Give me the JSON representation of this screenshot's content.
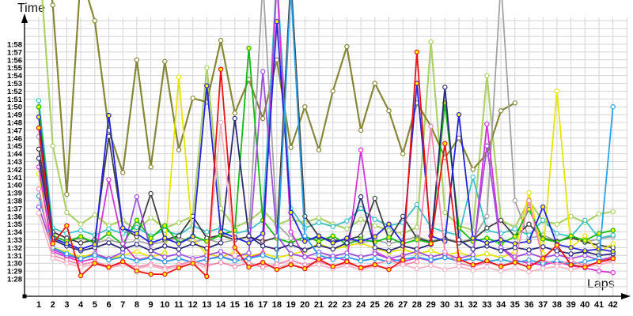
{
  "chart_data": {
    "type": "line",
    "title": "",
    "xlabel": "Laps",
    "ylabel": "Time",
    "x_ticks": [
      1,
      2,
      3,
      4,
      5,
      6,
      7,
      8,
      9,
      10,
      11,
      12,
      13,
      14,
      15,
      16,
      17,
      18,
      19,
      20,
      21,
      22,
      23,
      24,
      25,
      26,
      27,
      28,
      29,
      30,
      31,
      32,
      33,
      34,
      35,
      36,
      37,
      38,
      39,
      40,
      41,
      42
    ],
    "y_tick_labels": [
      "1:28",
      "1:29",
      "1:30",
      "1:31",
      "1:32",
      "1:33",
      "1:34",
      "1:35",
      "1:36",
      "1:37",
      "1:38",
      "1:39",
      "1:40",
      "1:41",
      "1:42",
      "1:43",
      "1:44",
      "1:45",
      "1:46",
      "1:47",
      "1:48",
      "1:49",
      "1:50",
      "1:51",
      "1:52",
      "1:53",
      "1:54",
      "1:55",
      "1:56",
      "1:57",
      "1:58"
    ],
    "y_min_seconds": 88,
    "y_max_seconds": 118,
    "grid": true,
    "legend": "none",
    "grid_color": "#d4d4d4",
    "axis_color": "#000000",
    "series": [
      {
        "name": "yellowgreen",
        "color": "#acd268",
        "marker_fill": "#ffffff",
        "width": 2.2,
        "values": [
          130,
          105,
          96.5,
          95,
          96.2,
          94.8,
          95.5,
          94.2,
          95.8,
          94.5,
          95.2,
          96,
          115,
          97,
          94.6,
          95.4,
          96.8,
          94.9,
          95.6,
          95.2,
          95.8,
          95,
          94.4,
          95.6,
          94.8,
          94.2,
          93.8,
          94.6,
          118.3,
          96.5,
          94.8,
          94.2,
          114,
          95.5,
          94.6,
          98,
          95.4,
          95,
          96,
          95.2,
          96.3,
          96.6
        ]
      },
      {
        "name": "olive",
        "color": "#878738",
        "marker_fill": "#ffffff",
        "width": 2.2,
        "values": [
          138,
          123,
          98.8,
          127,
          121,
          107,
          101.6,
          116,
          102.3,
          115.8,
          104.5,
          111.1,
          110.6,
          118.5,
          109.2,
          113.5,
          108.5,
          116,
          104.8,
          110,
          104.5,
          112,
          117.7,
          107,
          113,
          109.5,
          104,
          110.5,
          107.5,
          103.5,
          106,
          102,
          104,
          109.5,
          110.5,
          null,
          null,
          null,
          null,
          null,
          null,
          null
        ]
      },
      {
        "name": "gray",
        "color": "#a2a2a2",
        "marker_fill": "#ffffff",
        "width": 1.8,
        "values": [
          106.2,
          93.5,
          92.8,
          93.2,
          92.6,
          93,
          92.5,
          92.9,
          92.4,
          92.8,
          93.3,
          92.7,
          93.1,
          92.6,
          93,
          93.4,
          126,
          95,
          93.2,
          92.8,
          93.3,
          92.7,
          93.1,
          92.6,
          93,
          92.5,
          92.9,
          93.4,
          92.8,
          93.2,
          92.7,
          93.1,
          96,
          126,
          98,
          93.2,
          93.6,
          92.8,
          93.3,
          92.7,
          93.1,
          93.4
        ]
      },
      {
        "name": "cyan",
        "color": "#3cc0cc",
        "marker_fill": "#ffffff",
        "width": 1.8,
        "values": [
          110.8,
          94.5,
          93.8,
          94.2,
          93.6,
          94.4,
          93.8,
          94.6,
          93.5,
          94.2,
          93.6,
          94.8,
          94,
          94.5,
          93.8,
          94.2,
          95.5,
          127,
          97,
          94.5,
          95.2,
          94.7,
          95.4,
          97,
          95.6,
          94.8,
          95.2,
          97.5,
          94.6,
          94,
          93.6,
          101,
          94.2,
          93.8,
          94.4,
          93.6,
          95.5,
          93.8,
          93.4,
          95.5,
          93.2,
          93.6
        ]
      },
      {
        "name": "darkgray",
        "color": "#404040",
        "marker_fill": "#ffffff",
        "width": 1.8,
        "values": [
          104.6,
          94,
          93.2,
          92.6,
          93,
          106.2,
          94.5,
          93.4,
          98.9,
          93,
          93.5,
          96,
          93.2,
          93.6,
          93,
          93.4,
          92.8,
          93.3,
          126.5,
          96,
          93.4,
          92.9,
          93,
          93.5,
          98.3,
          93,
          96,
          93.2,
          92.7,
          93.1,
          92.6,
          93,
          94.5,
          95.5,
          93.4,
          95,
          93.2,
          92.8,
          93.3,
          92.7,
          92.3,
          92
        ]
      },
      {
        "name": "yellow",
        "color": "#e8e400",
        "marker_fill": "#ffffff",
        "width": 1.8,
        "values": [
          101.4,
          92,
          91.4,
          90.8,
          91.2,
          90.6,
          91,
          91.5,
          90.8,
          91.3,
          113.8,
          93,
          91.2,
          90.8,
          91.4,
          90.9,
          91.3,
          90.7,
          91.1,
          91.6,
          92.5,
          91.8,
          92.2,
          92.6,
          91.9,
          91.4,
          91.8,
          91.2,
          91.6,
          91,
          91.4,
          90.8,
          91.2,
          90.7,
          91.5,
          99,
          91.2,
          112,
          92,
          93.5,
          91.4,
          92.5
        ]
      },
      {
        "name": "green",
        "color": "#14b814",
        "marker_fill": "#ffee00",
        "width": 1.8,
        "values": [
          110,
          93.5,
          92.8,
          93.4,
          92.6,
          93.8,
          92.4,
          95.5,
          93.2,
          94.8,
          92.6,
          93.5,
          92.8,
          93.6,
          94.2,
          117.5,
          95.5,
          93.2,
          92.6,
          93.4,
          92.8,
          93.5,
          92.4,
          93.1,
          92.7,
          93.3,
          92.5,
          93,
          92.6,
          110.5,
          94.5,
          92.8,
          93.2,
          92.5,
          93.4,
          96.9,
          93.1,
          92.7,
          93.5,
          92.9,
          93.8,
          94.2
        ]
      },
      {
        "name": "magenta",
        "color": "#d434d4",
        "marker_fill": "#ffffff",
        "width": 1.8,
        "values": [
          102.3,
          91.5,
          90.8,
          90.2,
          90.6,
          100.7,
          92.5,
          90.4,
          90.8,
          90.2,
          90.6,
          90.1,
          90.5,
          90.9,
          90.3,
          90.7,
          91.2,
          126,
          94,
          90.8,
          90.4,
          90.9,
          90.3,
          104.5,
          91.5,
          90.6,
          90.2,
          90.7,
          90.3,
          90.8,
          90.2,
          90.6,
          107.8,
          92,
          90.4,
          90,
          89.8,
          90.2,
          89.7,
          89.4,
          89,
          88.8
        ]
      },
      {
        "name": "violet",
        "color": "#9e4fdc",
        "marker_fill": "#ffffff",
        "width": 1.8,
        "values": [
          97.2,
          91.8,
          91,
          90.5,
          91.2,
          90.6,
          91.4,
          98.5,
          91.6,
          90.8,
          91.2,
          90.6,
          91,
          91.5,
          90.8,
          91.3,
          114.5,
          93.5,
          91.2,
          90.8,
          91.4,
          90.9,
          91.3,
          90.8,
          91.2,
          90.6,
          91,
          91.5,
          90.8,
          91.2,
          90.6,
          91.1,
          105,
          92,
          90.8,
          91.3,
          90.7,
          91.1,
          90.6,
          91,
          90.4,
          90.8
        ]
      },
      {
        "name": "navy",
        "color": "#2b2b78",
        "marker_fill": "#ffffff",
        "width": 1.8,
        "values": [
          103.4,
          93,
          92.2,
          91.6,
          92,
          92.6,
          91.8,
          92.4,
          91.6,
          92.2,
          91.8,
          92.5,
          91.9,
          92.6,
          108.5,
          93.5,
          92.2,
          91.8,
          92.4,
          91.7,
          92.3,
          91.8,
          92.6,
          98.5,
          92,
          91.6,
          92.2,
          91.8,
          92.4,
          112.5,
          93,
          91.8,
          92.2,
          91.6,
          92,
          91.7,
          92.1,
          91.6,
          91.2,
          91.5,
          91,
          91.2
        ]
      },
      {
        "name": "blue",
        "color": "#2424d8",
        "marker_fill": "#ffee00",
        "width": 1.8,
        "values": [
          108.7,
          93.2,
          92.5,
          91.8,
          92.4,
          108.9,
          94.5,
          93.8,
          92.6,
          93.2,
          92.5,
          93.4,
          112.7,
          94,
          93.3,
          92.6,
          93.8,
          120.9,
          96.5,
          92.8,
          93.5,
          92.6,
          93.2,
          92.8,
          93.4,
          95,
          92.6,
          113,
          93.5,
          92.8,
          109,
          93.2,
          92.6,
          93,
          92.5,
          92.8,
          97.2,
          92.4,
          92,
          91.6,
          91.8,
          91.5
        ]
      },
      {
        "name": "dodgerblue",
        "color": "#2e9fe6",
        "marker_fill": "#ffffff",
        "width": 1.8,
        "values": [
          98.6,
          92,
          91.2,
          90.6,
          91,
          90.4,
          90.8,
          90.3,
          90.7,
          90.2,
          90.6,
          90.1,
          90.5,
          90.8,
          90.3,
          90.6,
          91,
          90.4,
          125,
          93.5,
          91,
          90.5,
          90.8,
          90.3,
          90.6,
          90.2,
          90.5,
          90.8,
          90.4,
          90.7,
          90.3,
          90.6,
          90.2,
          90.5,
          90.1,
          90.4,
          90,
          90.3,
          89.9,
          90.2,
          90.6,
          110
        ]
      },
      {
        "name": "pink",
        "color": "#f287ae",
        "marker_fill": "#ffffff",
        "width": 1.8,
        "values": [
          99.5,
          91,
          90.4,
          89.8,
          90.2,
          89.6,
          90,
          89.5,
          89.9,
          89.4,
          89.8,
          90.3,
          89.7,
          90.1,
          89.6,
          90,
          89.5,
          89.9,
          90.4,
          89.8,
          90.2,
          89.6,
          90,
          89.5,
          89.9,
          90.4,
          89.8,
          90.2,
          107.5,
          91.5,
          90,
          89.6,
          90.1,
          89.7,
          90.2,
          98,
          90.4,
          89.8,
          90.3,
          89.7,
          90.1,
          90.4
        ]
      },
      {
        "name": "lightpink",
        "color": "#f7b6c6",
        "marker_fill": "#ffffff",
        "width": 1.8,
        "values": [
          96.4,
          90.6,
          90,
          89.5,
          89.9,
          89.4,
          89.8,
          89.3,
          89.7,
          89.2,
          89.6,
          90,
          89.4,
          108,
          91,
          89.6,
          90,
          89.5,
          89.9,
          89.4,
          89.8,
          89.3,
          89.7,
          89.2,
          89.6,
          89.4,
          89.8,
          89.3,
          89.7,
          89.2,
          89.6,
          89.1,
          89.5,
          89,
          89.4,
          88.9,
          89.3,
          89.6,
          89.2,
          89.5,
          89.8,
          90.2
        ]
      },
      {
        "name": "red",
        "color": "#e81414",
        "marker_fill": "#ffee00",
        "width": 1.8,
        "values": [
          107.3,
          92.5,
          94.8,
          88.4,
          90,
          89.5,
          90.2,
          89,
          88.6,
          88.6,
          89.4,
          90,
          88.3,
          114.8,
          92,
          89.5,
          90.1,
          89.2,
          89.8,
          89.3,
          90.5,
          89.6,
          90.2,
          89.4,
          89.8,
          89.2,
          90.4,
          117,
          92.5,
          105.3,
          90.5,
          89.8,
          90.3,
          89.6,
          90.1,
          89.5,
          90.6,
          92.3,
          89.8,
          89.5,
          90.2,
          90.6
        ]
      }
    ]
  },
  "labels": {
    "y_axis_title": "Time",
    "x_axis_title": "Laps"
  }
}
